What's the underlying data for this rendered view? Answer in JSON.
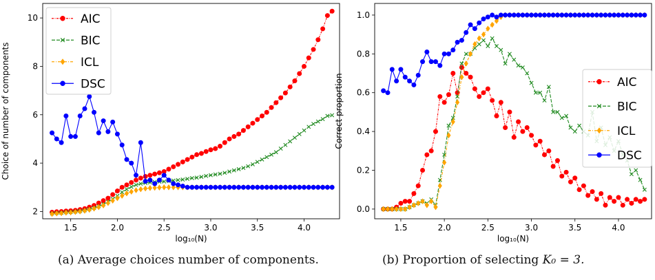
{
  "colors": {
    "AIC": "#ff0000",
    "BIC": "#228b22",
    "ICL": "#ffa500",
    "DSC": "#0000ff"
  },
  "chart_data": [
    {
      "type": "line",
      "xlabel": "log₁₀(N)",
      "ylabel": "Choice of number of components",
      "xlim": [
        1.2,
        4.38
      ],
      "ylim": [
        1.7,
        10.6
      ],
      "xticks": [
        "1.5",
        "2.0",
        "2.5",
        "3.0",
        "3.5",
        "4.0"
      ],
      "yticks": [
        "2",
        "4",
        "6",
        "8",
        "10"
      ],
      "xtick_values": [
        1.5,
        2.0,
        2.5,
        3.0,
        3.5,
        4.0
      ],
      "ytick_values": [
        2,
        4,
        6,
        8,
        10
      ],
      "legend": {
        "placement": "top-left",
        "entries": [
          "AIC",
          "BIC",
          "ICL",
          "DSC"
        ]
      },
      "series": [
        {
          "name": "AIC",
          "x": [
            1.3,
            1.35,
            1.4,
            1.45,
            1.5,
            1.55,
            1.6,
            1.65,
            1.7,
            1.75,
            1.8,
            1.85,
            1.9,
            1.95,
            2.0,
            2.05,
            2.1,
            2.15,
            2.2,
            2.25,
            2.3,
            2.35,
            2.4,
            2.45,
            2.5,
            2.55,
            2.6,
            2.65,
            2.7,
            2.75,
            2.8,
            2.85,
            2.9,
            2.95,
            3.0,
            3.05,
            3.1,
            3.15,
            3.2,
            3.25,
            3.3,
            3.35,
            3.4,
            3.45,
            3.5,
            3.55,
            3.6,
            3.65,
            3.7,
            3.75,
            3.8,
            3.85,
            3.9,
            3.95,
            4.0,
            4.05,
            4.1,
            4.15,
            4.2,
            4.25,
            4.3
          ],
          "y": [
            1.97,
            1.99,
            2.0,
            2.02,
            2.03,
            2.05,
            2.08,
            2.12,
            2.18,
            2.25,
            2.35,
            2.45,
            2.55,
            2.7,
            2.85,
            3.0,
            3.1,
            3.2,
            3.3,
            3.38,
            3.45,
            3.5,
            3.55,
            3.6,
            3.65,
            3.75,
            3.85,
            3.95,
            4.05,
            4.15,
            4.25,
            4.35,
            4.4,
            4.48,
            4.55,
            4.6,
            4.7,
            4.85,
            5.0,
            5.1,
            5.2,
            5.35,
            5.5,
            5.65,
            5.8,
            5.95,
            6.1,
            6.3,
            6.5,
            6.7,
            6.9,
            7.15,
            7.4,
            7.7,
            8.0,
            8.35,
            8.7,
            9.1,
            9.55,
            10.1,
            10.28
          ]
        },
        {
          "name": "BIC",
          "x": [
            1.3,
            1.35,
            1.4,
            1.45,
            1.5,
            1.55,
            1.6,
            1.65,
            1.7,
            1.75,
            1.8,
            1.85,
            1.9,
            1.95,
            2.0,
            2.05,
            2.1,
            2.15,
            2.2,
            2.25,
            2.3,
            2.35,
            2.4,
            2.45,
            2.5,
            2.55,
            2.6,
            2.65,
            2.7,
            2.75,
            2.8,
            2.85,
            2.9,
            2.95,
            3.0,
            3.05,
            3.1,
            3.15,
            3.2,
            3.25,
            3.3,
            3.35,
            3.4,
            3.45,
            3.5,
            3.55,
            3.6,
            3.65,
            3.7,
            3.75,
            3.8,
            3.85,
            3.9,
            3.95,
            4.0,
            4.05,
            4.1,
            4.15,
            4.2,
            4.25,
            4.3
          ],
          "y": [
            1.92,
            1.94,
            1.95,
            1.97,
            1.98,
            2.0,
            2.02,
            2.05,
            2.1,
            2.15,
            2.22,
            2.3,
            2.4,
            2.52,
            2.65,
            2.8,
            2.92,
            3.02,
            3.1,
            3.15,
            3.18,
            3.2,
            3.22,
            3.23,
            3.24,
            3.26,
            3.28,
            3.3,
            3.32,
            3.35,
            3.38,
            3.4,
            3.43,
            3.47,
            3.5,
            3.53,
            3.56,
            3.6,
            3.65,
            3.7,
            3.75,
            3.8,
            3.87,
            3.95,
            4.05,
            4.15,
            4.25,
            4.35,
            4.45,
            4.6,
            4.75,
            4.9,
            5.05,
            5.2,
            5.35,
            5.5,
            5.62,
            5.72,
            5.82,
            5.95,
            5.98
          ]
        },
        {
          "name": "ICL",
          "x": [
            1.3,
            1.35,
            1.4,
            1.45,
            1.5,
            1.55,
            1.6,
            1.65,
            1.7,
            1.75,
            1.8,
            1.85,
            1.9,
            1.95,
            2.0,
            2.05,
            2.1,
            2.15,
            2.2,
            2.25,
            2.3,
            2.35,
            2.4,
            2.45,
            2.5,
            2.55,
            2.6,
            2.65,
            2.7,
            2.75,
            2.8,
            2.85,
            2.9,
            2.95,
            3.0,
            3.05,
            3.1,
            3.15,
            3.2,
            3.25,
            3.3,
            3.35,
            3.4,
            3.45,
            3.5,
            3.55,
            3.6,
            3.65,
            3.7,
            3.75,
            3.8,
            3.85,
            3.9,
            3.95,
            4.0,
            4.05,
            4.1,
            4.15,
            4.2,
            4.25,
            4.3
          ],
          "y": [
            1.9,
            1.92,
            1.93,
            1.95,
            1.96,
            1.98,
            2.0,
            2.03,
            2.07,
            2.12,
            2.18,
            2.25,
            2.35,
            2.45,
            2.55,
            2.65,
            2.75,
            2.82,
            2.88,
            2.92,
            2.95,
            2.97,
            2.98,
            2.99,
            3.0,
            3.0,
            3.0,
            3.0,
            3.0,
            3.0,
            3.0,
            3.0,
            3.0,
            3.0,
            3.0,
            3.0,
            3.0,
            3.0,
            3.0,
            3.0,
            3.0,
            3.0,
            3.0,
            3.0,
            3.0,
            3.0,
            3.0,
            3.0,
            3.0,
            3.0,
            3.0,
            3.0,
            3.0,
            3.0,
            3.0,
            3.0,
            3.0,
            3.0,
            3.0,
            3.0,
            3.0
          ]
        },
        {
          "name": "DSC",
          "x": [
            1.3,
            1.35,
            1.4,
            1.45,
            1.5,
            1.55,
            1.6,
            1.65,
            1.7,
            1.75,
            1.8,
            1.85,
            1.9,
            1.95,
            2.0,
            2.05,
            2.1,
            2.15,
            2.2,
            2.25,
            2.3,
            2.35,
            2.4,
            2.45,
            2.5,
            2.55,
            2.6,
            2.65,
            2.7,
            2.75,
            2.8,
            2.85,
            2.9,
            2.95,
            3.0,
            3.05,
            3.1,
            3.15,
            3.2,
            3.25,
            3.3,
            3.35,
            3.4,
            3.45,
            3.5,
            3.55,
            3.6,
            3.65,
            3.7,
            3.75,
            3.8,
            3.85,
            3.9,
            3.95,
            4.0,
            4.05,
            4.1,
            4.15,
            4.2,
            4.25,
            4.3
          ],
          "y": [
            5.25,
            5.0,
            4.85,
            5.95,
            5.1,
            5.1,
            5.95,
            6.25,
            6.75,
            6.1,
            5.25,
            5.75,
            5.3,
            5.7,
            5.2,
            4.75,
            4.15,
            4.0,
            3.5,
            4.85,
            3.25,
            3.3,
            3.15,
            3.3,
            3.5,
            3.3,
            3.15,
            3.1,
            3.05,
            3.0,
            3.0,
            3.0,
            3.0,
            3.0,
            3.0,
            3.0,
            3.0,
            3.0,
            3.0,
            3.0,
            3.0,
            3.0,
            3.0,
            3.0,
            3.0,
            3.0,
            3.0,
            3.0,
            3.0,
            3.0,
            3.0,
            3.0,
            3.0,
            3.0,
            3.0,
            3.0,
            3.0,
            3.0,
            3.0,
            3.0,
            3.0
          ]
        }
      ]
    },
    {
      "type": "line",
      "xlabel": "log₁₀(N)",
      "ylabel": "Correct proportion",
      "xlim": [
        1.2,
        4.38
      ],
      "ylim": [
        -0.05,
        1.06
      ],
      "xticks": [
        "1.5",
        "2.0",
        "2.5",
        "3.0",
        "3.5",
        "4.0"
      ],
      "yticks": [
        "0.0",
        "0.2",
        "0.4",
        "0.6",
        "0.8",
        "1.0"
      ],
      "xtick_values": [
        1.5,
        2.0,
        2.5,
        3.0,
        3.5,
        4.0
      ],
      "ytick_values": [
        0.0,
        0.2,
        0.4,
        0.6,
        0.8,
        1.0
      ],
      "legend": {
        "placement": "center-right",
        "entries": [
          "AIC",
          "BIC",
          "ICL",
          "DSC"
        ]
      },
      "series": [
        {
          "name": "AIC",
          "x": [
            1.3,
            1.35,
            1.4,
            1.45,
            1.5,
            1.55,
            1.6,
            1.65,
            1.7,
            1.75,
            1.8,
            1.85,
            1.9,
            1.95,
            2.0,
            2.05,
            2.1,
            2.15,
            2.2,
            2.25,
            2.3,
            2.35,
            2.4,
            2.45,
            2.5,
            2.55,
            2.6,
            2.65,
            2.7,
            2.75,
            2.8,
            2.85,
            2.9,
            2.95,
            3.0,
            3.05,
            3.1,
            3.15,
            3.2,
            3.25,
            3.3,
            3.35,
            3.4,
            3.45,
            3.5,
            3.55,
            3.6,
            3.65,
            3.7,
            3.75,
            3.8,
            3.85,
            3.9,
            3.95,
            4.0,
            4.05,
            4.1,
            4.15,
            4.2,
            4.25,
            4.3
          ],
          "y": [
            0.0,
            0.0,
            0.0,
            0.01,
            0.03,
            0.04,
            0.04,
            0.08,
            0.12,
            0.2,
            0.28,
            0.3,
            0.4,
            0.58,
            0.55,
            0.59,
            0.7,
            0.6,
            0.73,
            0.7,
            0.68,
            0.62,
            0.58,
            0.6,
            0.62,
            0.56,
            0.48,
            0.55,
            0.42,
            0.5,
            0.37,
            0.45,
            0.4,
            0.42,
            0.38,
            0.33,
            0.35,
            0.28,
            0.3,
            0.22,
            0.25,
            0.17,
            0.19,
            0.14,
            0.16,
            0.1,
            0.12,
            0.07,
            0.09,
            0.05,
            0.08,
            0.02,
            0.06,
            0.04,
            0.06,
            0.02,
            0.05,
            0.03,
            0.05,
            0.04,
            0.05
          ]
        },
        {
          "name": "BIC",
          "x": [
            1.3,
            1.35,
            1.4,
            1.45,
            1.5,
            1.55,
            1.6,
            1.65,
            1.7,
            1.75,
            1.8,
            1.85,
            1.9,
            1.95,
            2.0,
            2.05,
            2.1,
            2.15,
            2.2,
            2.25,
            2.3,
            2.35,
            2.4,
            2.45,
            2.5,
            2.55,
            2.6,
            2.65,
            2.7,
            2.75,
            2.8,
            2.85,
            2.9,
            2.95,
            3.0,
            3.05,
            3.1,
            3.15,
            3.2,
            3.25,
            3.3,
            3.35,
            3.4,
            3.45,
            3.5,
            3.55,
            3.6,
            3.65,
            3.7,
            3.75,
            3.8,
            3.85,
            3.9,
            3.95,
            4.0,
            4.05,
            4.1,
            4.15,
            4.2,
            4.25,
            4.3
          ],
          "y": [
            0.0,
            0.0,
            0.0,
            0.0,
            0.0,
            0.0,
            0.01,
            0.02,
            0.03,
            0.04,
            0.03,
            0.05,
            0.02,
            0.15,
            0.28,
            0.43,
            0.47,
            0.58,
            0.75,
            0.8,
            0.8,
            0.83,
            0.85,
            0.87,
            0.84,
            0.88,
            0.84,
            0.82,
            0.75,
            0.8,
            0.77,
            0.74,
            0.73,
            0.7,
            0.65,
            0.6,
            0.6,
            0.56,
            0.63,
            0.5,
            0.5,
            0.47,
            0.48,
            0.42,
            0.4,
            0.43,
            0.4,
            0.38,
            0.5,
            0.35,
            0.42,
            0.33,
            0.37,
            0.3,
            0.35,
            0.28,
            0.25,
            0.18,
            0.2,
            0.15,
            0.1
          ]
        },
        {
          "name": "ICL",
          "x": [
            1.3,
            1.35,
            1.4,
            1.45,
            1.5,
            1.55,
            1.6,
            1.65,
            1.7,
            1.75,
            1.8,
            1.85,
            1.9,
            1.95,
            2.0,
            2.05,
            2.1,
            2.15,
            2.2,
            2.25,
            2.3,
            2.35,
            2.4,
            2.45,
            2.5,
            2.55,
            2.6,
            2.65,
            2.7,
            2.75,
            2.8,
            2.85,
            2.9,
            2.95,
            3.0,
            3.05,
            3.1,
            3.15,
            3.2,
            3.25,
            3.3,
            3.35,
            3.4,
            3.45,
            3.5,
            3.55,
            3.6,
            3.65,
            3.7,
            3.75,
            3.8,
            3.85,
            3.9,
            3.95,
            4.0,
            4.05,
            4.1,
            4.15,
            4.2,
            4.25,
            4.3
          ],
          "y": [
            0.0,
            0.0,
            0.0,
            0.0,
            0.0,
            0.0,
            0.01,
            0.02,
            0.03,
            0.04,
            0.02,
            0.04,
            0.01,
            0.12,
            0.24,
            0.38,
            0.45,
            0.55,
            0.68,
            0.75,
            0.8,
            0.85,
            0.88,
            0.9,
            0.93,
            0.95,
            0.97,
            0.99,
            1.0,
            1.0,
            1.0,
            1.0,
            1.0,
            1.0,
            1.0,
            1.0,
            1.0,
            1.0,
            1.0,
            1.0,
            1.0,
            1.0,
            1.0,
            1.0,
            1.0,
            1.0,
            1.0,
            1.0,
            1.0,
            1.0,
            1.0,
            1.0,
            1.0,
            1.0,
            1.0,
            1.0,
            1.0,
            1.0,
            1.0,
            1.0,
            1.0
          ]
        },
        {
          "name": "DSC",
          "x": [
            1.3,
            1.35,
            1.4,
            1.45,
            1.5,
            1.55,
            1.6,
            1.65,
            1.7,
            1.75,
            1.8,
            1.85,
            1.9,
            1.95,
            2.0,
            2.05,
            2.1,
            2.15,
            2.2,
            2.25,
            2.3,
            2.35,
            2.4,
            2.45,
            2.5,
            2.55,
            2.6,
            2.65,
            2.7,
            2.75,
            2.8,
            2.85,
            2.9,
            2.95,
            3.0,
            3.05,
            3.1,
            3.15,
            3.2,
            3.25,
            3.3,
            3.35,
            3.4,
            3.45,
            3.5,
            3.55,
            3.6,
            3.65,
            3.7,
            3.75,
            3.8,
            3.85,
            3.9,
            3.95,
            4.0,
            4.05,
            4.1,
            4.15,
            4.2,
            4.25,
            4.3
          ],
          "y": [
            0.61,
            0.6,
            0.72,
            0.66,
            0.72,
            0.68,
            0.66,
            0.64,
            0.69,
            0.76,
            0.81,
            0.76,
            0.76,
            0.74,
            0.8,
            0.8,
            0.82,
            0.86,
            0.87,
            0.91,
            0.95,
            0.93,
            0.96,
            0.98,
            0.99,
            1.0,
            0.99,
            1.0,
            1.0,
            1.0,
            1.0,
            1.0,
            1.0,
            1.0,
            1.0,
            1.0,
            1.0,
            1.0,
            1.0,
            1.0,
            1.0,
            1.0,
            1.0,
            1.0,
            1.0,
            1.0,
            1.0,
            1.0,
            1.0,
            1.0,
            1.0,
            1.0,
            1.0,
            1.0,
            1.0,
            1.0,
            1.0,
            1.0,
            1.0,
            1.0,
            1.0
          ]
        }
      ]
    }
  ],
  "captions": {
    "a": "(a) Average choices number of components.",
    "b_prefix": "(b) Proportion of selecting ",
    "b_tex": "K₀ = 3."
  }
}
